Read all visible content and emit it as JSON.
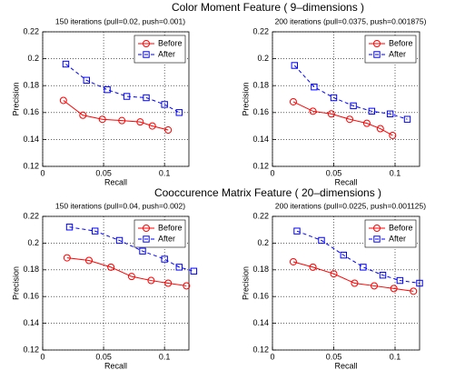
{
  "chart_data": [
    {
      "type": "line",
      "suptitle": "Color Moment Feature ( 9–dimensions )",
      "title": "150 iterations (pull=0.02, push=0.001)",
      "xlabel": "Recall",
      "ylabel": "Precision",
      "xlim": [
        0,
        0.12
      ],
      "ylim": [
        0.12,
        0.22
      ],
      "xticks": [
        0,
        0.05,
        0.1
      ],
      "yticks": [
        0.12,
        0.14,
        0.16,
        0.18,
        0.2,
        0.22
      ],
      "grid": true,
      "legend": "upper right",
      "series": [
        {
          "name": "Before",
          "color": "#ff0000",
          "marker": "circle",
          "linestyle": "solid",
          "x": [
            0.017,
            0.033,
            0.049,
            0.065,
            0.08,
            0.09,
            0.103
          ],
          "values": [
            0.169,
            0.158,
            0.155,
            0.154,
            0.153,
            0.15,
            0.147
          ]
        },
        {
          "name": "After",
          "color": "#0000ff",
          "marker": "square",
          "linestyle": "dashed",
          "x": [
            0.019,
            0.036,
            0.053,
            0.069,
            0.085,
            0.1,
            0.112
          ],
          "values": [
            0.196,
            0.184,
            0.177,
            0.172,
            0.171,
            0.166,
            0.16
          ]
        }
      ]
    },
    {
      "type": "line",
      "title": "200 iterations (pull=0.0375, push=0.001875)",
      "xlabel": "Recall",
      "ylabel": "Precision",
      "xlim": [
        0,
        0.12
      ],
      "ylim": [
        0.12,
        0.22
      ],
      "xticks": [
        0,
        0.05,
        0.1
      ],
      "yticks": [
        0.12,
        0.14,
        0.16,
        0.18,
        0.2,
        0.22
      ],
      "grid": true,
      "legend": "upper right",
      "series": [
        {
          "name": "Before",
          "color": "#ff0000",
          "marker": "circle",
          "linestyle": "solid",
          "x": [
            0.017,
            0.033,
            0.048,
            0.063,
            0.077,
            0.088,
            0.098
          ],
          "values": [
            0.168,
            0.161,
            0.159,
            0.155,
            0.152,
            0.148,
            0.143
          ]
        },
        {
          "name": "After",
          "color": "#0000ff",
          "marker": "square",
          "linestyle": "dashed",
          "x": [
            0.018,
            0.034,
            0.05,
            0.066,
            0.081,
            0.096,
            0.11
          ],
          "values": [
            0.195,
            0.179,
            0.171,
            0.165,
            0.161,
            0.159,
            0.155
          ]
        }
      ]
    },
    {
      "type": "line",
      "suptitle": "Cooccurence Matrix Feature ( 20–dimensions )",
      "title": "150 iterations (pull=0.04, push=0.002)",
      "xlabel": "Recall",
      "ylabel": "Precision",
      "xlim": [
        0,
        0.12
      ],
      "ylim": [
        0.12,
        0.22
      ],
      "xticks": [
        0,
        0.05,
        0.1
      ],
      "yticks": [
        0.12,
        0.14,
        0.16,
        0.18,
        0.2,
        0.22
      ],
      "grid": true,
      "legend": "upper right",
      "series": [
        {
          "name": "Before",
          "color": "#ff0000",
          "marker": "circle",
          "linestyle": "solid",
          "x": [
            0.02,
            0.038,
            0.056,
            0.073,
            0.089,
            0.103,
            0.118
          ],
          "values": [
            0.189,
            0.187,
            0.182,
            0.175,
            0.172,
            0.17,
            0.168
          ]
        },
        {
          "name": "After",
          "color": "#0000ff",
          "marker": "square",
          "linestyle": "dashed",
          "x": [
            0.022,
            0.043,
            0.063,
            0.082,
            0.1,
            0.112,
            0.124
          ],
          "values": [
            0.212,
            0.209,
            0.202,
            0.194,
            0.188,
            0.182,
            0.179
          ]
        }
      ]
    },
    {
      "type": "line",
      "title": "200 iterations (pull=0.0225, push=0.001125)",
      "xlabel": "Recall",
      "ylabel": "Precision",
      "xlim": [
        0,
        0.12
      ],
      "ylim": [
        0.12,
        0.22
      ],
      "xticks": [
        0,
        0.05,
        0.1
      ],
      "yticks": [
        0.12,
        0.14,
        0.16,
        0.18,
        0.2,
        0.22
      ],
      "grid": true,
      "legend": "upper right",
      "series": [
        {
          "name": "Before",
          "color": "#ff0000",
          "marker": "circle",
          "linestyle": "solid",
          "x": [
            0.017,
            0.033,
            0.05,
            0.067,
            0.083,
            0.099,
            0.115
          ],
          "values": [
            0.186,
            0.182,
            0.177,
            0.17,
            0.168,
            0.166,
            0.164
          ]
        },
        {
          "name": "After",
          "color": "#0000ff",
          "marker": "square",
          "linestyle": "dashed",
          "x": [
            0.02,
            0.04,
            0.058,
            0.074,
            0.09,
            0.104,
            0.12
          ],
          "values": [
            0.209,
            0.202,
            0.191,
            0.182,
            0.176,
            0.172,
            0.17
          ]
        }
      ]
    }
  ]
}
